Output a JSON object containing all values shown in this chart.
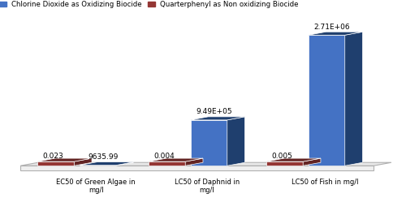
{
  "categories": [
    "EC50 of Green Algae in\nmg/l",
    "LC50 of Daphnid in\nmg/l",
    "LC50 of Fish in mg/l"
  ],
  "blue_values": [
    9635.99,
    949000,
    2710000
  ],
  "red_values": [
    0.023,
    0.004,
    0.005
  ],
  "blue_labels": [
    "9635.99",
    "9.49E+05",
    "2.71E+06"
  ],
  "red_labels": [
    "0.023",
    "0.004",
    "0.005"
  ],
  "blue_front_color": "#4472c4",
  "blue_dark_color": "#1f3f6e",
  "red_front_color": "#943634",
  "red_dark_color": "#632423",
  "legend_blue": "Chlorine Dioxide as Oxidizing Biocide",
  "legend_red": "Quarterphenyl as Non oxidizing Biocide",
  "figsize": [
    5.0,
    2.44
  ],
  "dpi": 100,
  "floor_color": "#e8e8e8",
  "floor_edge_color": "#b0b0b0"
}
